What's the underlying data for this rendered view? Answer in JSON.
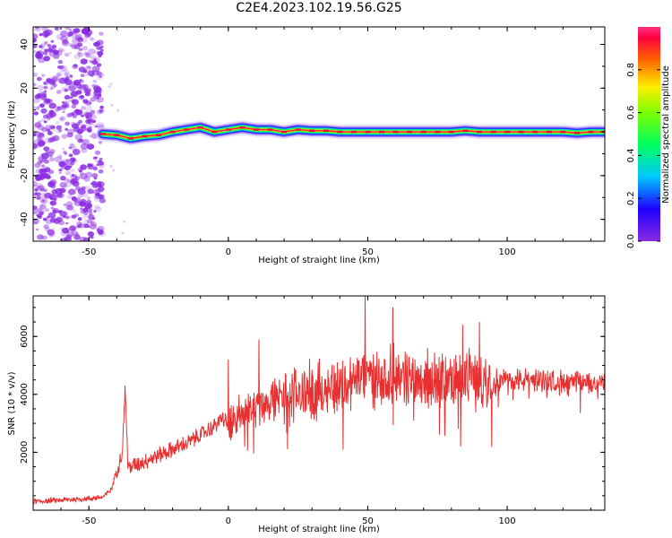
{
  "figure_title": "C2E4.2023.102.19.56.G25",
  "colors": {
    "snr_line": "#e83030",
    "scatter_noise": "#8a2be2",
    "axis": "#000000",
    "background": "#ffffff"
  },
  "colorbar": {
    "label": "Normalized spectral amplitude",
    "ticks": [
      "0.0",
      "0.2",
      "0.4",
      "0.6",
      "0.8"
    ],
    "tick_values": [
      0.0,
      0.2,
      0.4,
      0.6,
      0.8
    ],
    "range": [
      0,
      1
    ],
    "colormap": "gist_rainbow (violet-blue-cyan-green-yellow-red-magenta)"
  },
  "chart_data": [
    {
      "type": "heatmap",
      "title": "",
      "xlabel": "Height of straight line (km)",
      "ylabel": "Frequency (Hz)",
      "xlim": [
        -70,
        135
      ],
      "ylim": [
        -50,
        48
      ],
      "x_ticks": [
        -50,
        0,
        50,
        100
      ],
      "x_tick_labels": [
        "-50",
        "0",
        "50",
        "100"
      ],
      "y_ticks": [
        -40,
        -20,
        0,
        20,
        40
      ],
      "y_tick_labels": [
        "-40",
        "-20",
        "0",
        "20",
        "40"
      ],
      "noise_region_x": [
        -70,
        -45
      ],
      "signal_start_x": -45,
      "signal_trace": {
        "x": [
          -45,
          -40,
          -35,
          -30,
          -25,
          -20,
          -15,
          -10,
          -5,
          0,
          5,
          10,
          15,
          20,
          25,
          30,
          35,
          40,
          45,
          50,
          55,
          60,
          65,
          70,
          75,
          80,
          85,
          90,
          95,
          100,
          105,
          110,
          115,
          120,
          125,
          130,
          135
        ],
        "y": [
          -1,
          -1.5,
          -3,
          -2,
          -1.5,
          0,
          1,
          2,
          0,
          1,
          2,
          1,
          1,
          0,
          1,
          0.5,
          0.5,
          0,
          0,
          0,
          0,
          0,
          0,
          0,
          0,
          0,
          0.5,
          0,
          0,
          0,
          0,
          0,
          0,
          0,
          -0.5,
          0,
          0
        ]
      }
    },
    {
      "type": "line",
      "title": "",
      "xlabel": "Height of straight line (km)",
      "ylabel": "SNR (10 * v/v)",
      "xlim": [
        -70,
        135
      ],
      "ylim": [
        0,
        7400
      ],
      "x_ticks": [
        -50,
        0,
        50,
        100
      ],
      "x_tick_labels": [
        "-50",
        "0",
        "50",
        "100"
      ],
      "y_ticks": [
        2000,
        4000,
        6000
      ],
      "y_tick_labels": [
        "2000",
        "4000",
        "6000"
      ],
      "series": [
        {
          "x": [
            -70,
            -60,
            -50,
            -45,
            -42,
            -40,
            -38,
            -37,
            -36,
            -35,
            -30,
            -25,
            -20,
            -15,
            -10,
            -5,
            -2,
            0,
            2,
            5,
            10,
            15,
            20,
            25,
            30,
            35,
            40,
            45,
            50,
            55,
            60,
            65,
            70,
            75,
            80,
            85,
            90,
            95,
            100,
            105,
            110,
            115,
            120,
            125,
            130,
            135
          ],
          "y": [
            300,
            350,
            400,
            450,
            700,
            1400,
            2000,
            4300,
            1500,
            1500,
            1700,
            1900,
            2100,
            2300,
            2600,
            2900,
            3200,
            2900,
            3100,
            3300,
            3600,
            3800,
            3900,
            4000,
            4100,
            4200,
            4300,
            4500,
            4600,
            4600,
            4700,
            4600,
            4500,
            4500,
            4500,
            4600,
            4500,
            4500,
            4500,
            4500,
            4500,
            4500,
            4400,
            4400,
            4400,
            4400
          ],
          "peaks": [
            {
              "x": -37,
              "y": 4300
            },
            {
              "x": 0,
              "y": 5200
            },
            {
              "x": 11,
              "y": 5900
            },
            {
              "x": 49,
              "y": 7400
            },
            {
              "x": 59,
              "y": 7000
            },
            {
              "x": 84,
              "y": 6400
            },
            {
              "x": 90,
              "y": 6500
            }
          ]
        }
      ]
    }
  ]
}
